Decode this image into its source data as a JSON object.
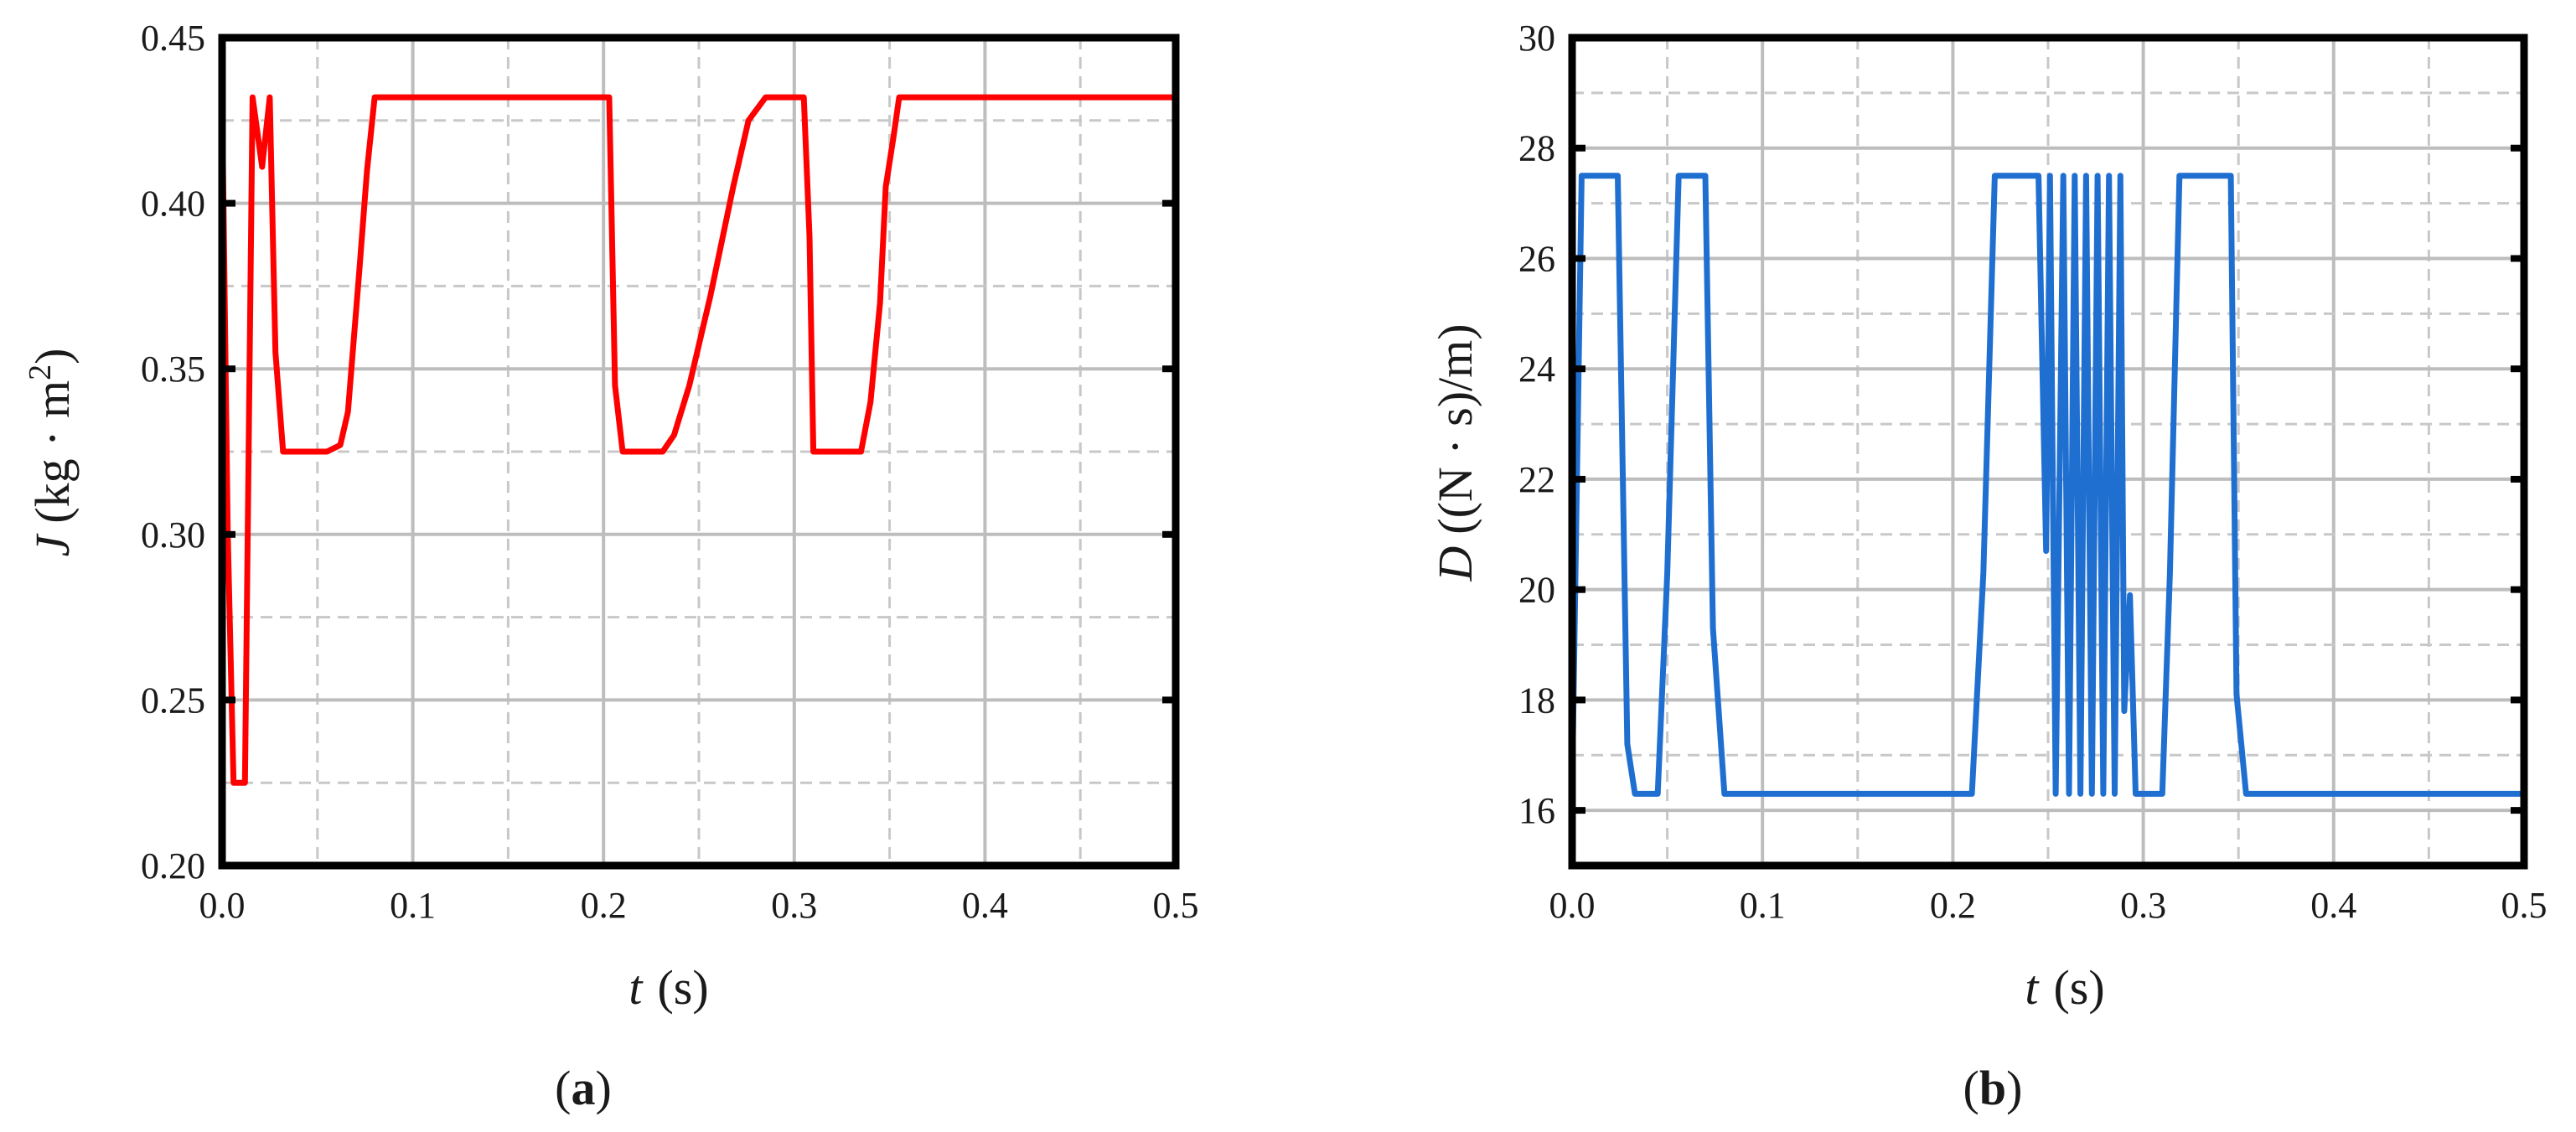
{
  "chart_data": [
    {
      "panel": "(a)",
      "type": "line",
      "xlabel": "t (s)",
      "ylabel": "J (kg · m²)",
      "ylabel_var": "J",
      "ylabel_unit_open": "(kg · m",
      "ylabel_unit_sup": "2",
      "ylabel_unit_close": ")",
      "xlabel_var": "t",
      "xlabel_unit": "(s)",
      "xlim": [
        0,
        0.5
      ],
      "ylim": [
        0.2,
        0.45
      ],
      "x_ticks": [
        0.0,
        0.1,
        0.2,
        0.3,
        0.4,
        0.5
      ],
      "x_tick_labels": [
        "0.0",
        "0.1",
        "0.2",
        "0.3",
        "0.4",
        "0.5"
      ],
      "y_ticks": [
        0.2,
        0.25,
        0.3,
        0.35,
        0.4,
        0.45
      ],
      "y_tick_labels": [
        "0.20",
        "0.25",
        "0.30",
        "0.35",
        "0.40",
        "0.45"
      ],
      "grid": true,
      "color": "#ff0000",
      "series": [
        {
          "x": [
            0.0,
            0.003,
            0.006,
            0.008,
            0.012,
            0.016,
            0.021,
            0.025,
            0.028,
            0.032,
            0.033,
            0.037,
            0.055,
            0.062,
            0.066,
            0.072,
            0.076,
            0.08,
            0.088,
            0.2,
            0.203,
            0.206,
            0.21,
            0.224,
            0.231,
            0.237,
            0.245,
            0.256,
            0.268,
            0.276,
            0.285,
            0.298,
            0.305,
            0.308,
            0.31,
            0.31,
            0.335,
            0.34,
            0.345,
            0.348,
            0.352,
            0.355,
            0.5
          ],
          "y": [
            0.432,
            0.3,
            0.225,
            0.225,
            0.225,
            0.432,
            0.411,
            0.432,
            0.355,
            0.325,
            0.325,
            0.325,
            0.325,
            0.327,
            0.337,
            0.38,
            0.41,
            0.432,
            0.432,
            0.432,
            0.432,
            0.345,
            0.325,
            0.325,
            0.325,
            0.33,
            0.345,
            0.372,
            0.405,
            0.425,
            0.432,
            0.432,
            0.432,
            0.39,
            0.325,
            0.325,
            0.325,
            0.34,
            0.37,
            0.405,
            0.42,
            0.432,
            0.432
          ]
        }
      ]
    },
    {
      "panel": "(b)",
      "type": "line",
      "xlabel": "t (s)",
      "ylabel": "D ((N · s)/m)",
      "ylabel_var": "D",
      "ylabel_unit": "((N · s)/m)",
      "xlabel_var": "t",
      "xlabel_unit": "(s)",
      "xlim": [
        0,
        0.5
      ],
      "ylim": [
        15,
        30
      ],
      "x_ticks": [
        0.0,
        0.1,
        0.2,
        0.3,
        0.4,
        0.5
      ],
      "x_tick_labels": [
        "0.0",
        "0.1",
        "0.2",
        "0.3",
        "0.4",
        "0.5"
      ],
      "y_ticks": [
        16,
        18,
        20,
        22,
        24,
        26,
        28,
        30
      ],
      "y_tick_labels": [
        "16",
        "18",
        "20",
        "22",
        "24",
        "26",
        "28",
        "30"
      ],
      "grid": true,
      "color": "#1f6fd1",
      "series": [
        {
          "x": [
            0.0,
            0.005,
            0.024,
            0.029,
            0.033,
            0.045,
            0.05,
            0.056,
            0.07,
            0.074,
            0.08,
            0.21,
            0.216,
            0.222,
            0.245,
            0.249,
            0.251,
            0.254,
            0.258,
            0.261,
            0.264,
            0.267,
            0.27,
            0.273,
            0.276,
            0.279,
            0.282,
            0.285,
            0.288,
            0.29,
            0.293,
            0.296,
            0.3,
            0.303,
            0.31,
            0.314,
            0.319,
            0.325,
            0.346,
            0.349,
            0.354,
            0.5
          ],
          "y": [
            16.3,
            27.5,
            27.5,
            17.2,
            16.3,
            16.3,
            20.3,
            27.5,
            27.5,
            19.3,
            16.3,
            16.3,
            20.3,
            27.5,
            27.5,
            20.7,
            27.5,
            16.3,
            27.5,
            16.3,
            27.5,
            16.3,
            27.5,
            16.3,
            27.5,
            16.3,
            27.5,
            16.3,
            27.5,
            17.8,
            19.9,
            16.3,
            16.3,
            16.3,
            16.3,
            20.3,
            27.5,
            27.5,
            27.5,
            18.1,
            16.3,
            16.3
          ]
        }
      ]
    }
  ]
}
